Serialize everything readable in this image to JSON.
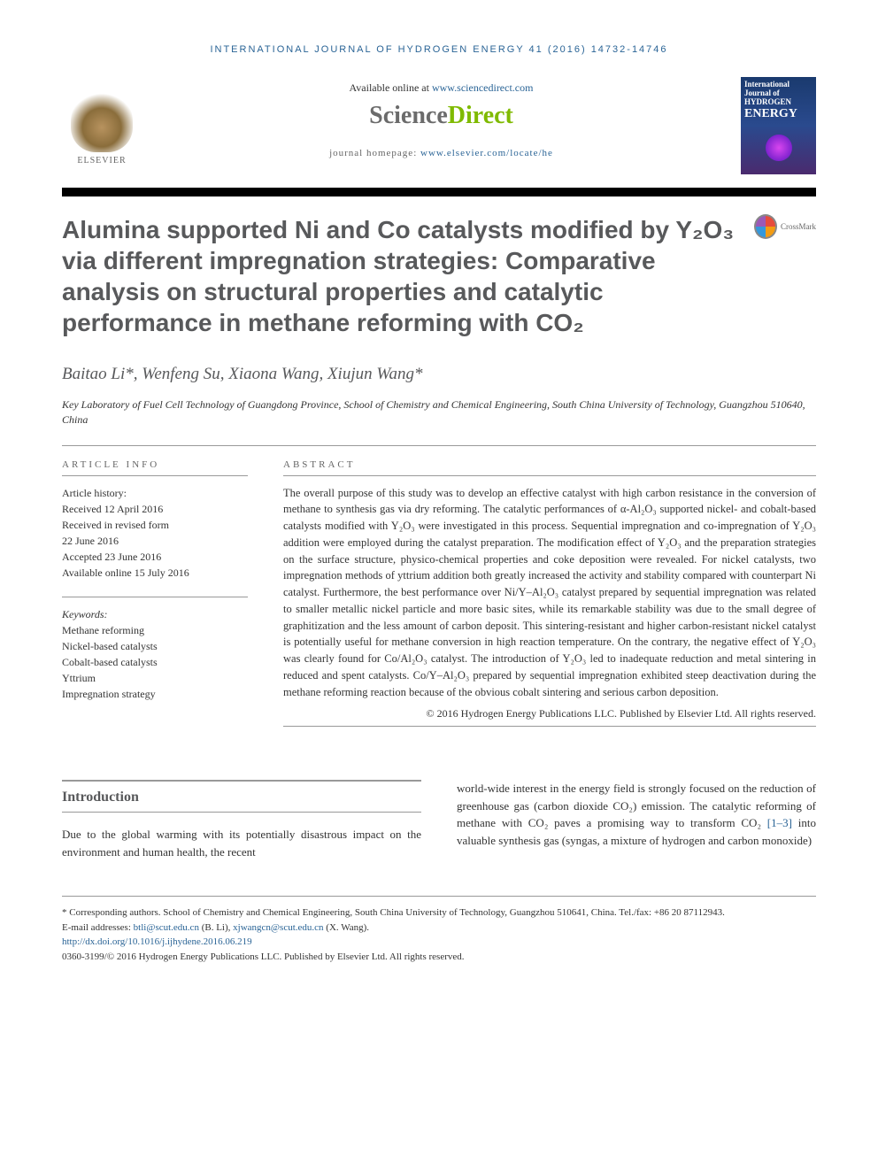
{
  "running_head": "INTERNATIONAL JOURNAL OF HYDROGEN ENERGY 41 (2016) 14732-14746",
  "header": {
    "available_text": "Available online at ",
    "available_link": "www.sciencedirect.com",
    "sd_science": "Science",
    "sd_direct": "Direct",
    "homepage_label": "journal homepage: ",
    "homepage_link": "www.elsevier.com/locate/he",
    "publisher_name": "ELSEVIER",
    "journal_cover_line1": "International Journal of",
    "journal_cover_line2": "HYDROGEN",
    "journal_cover_line3": "ENERGY"
  },
  "crossmark_label": "CrossMark",
  "title": "Alumina supported Ni and Co catalysts modified by Y₂O₃ via different impregnation strategies: Comparative analysis on structural properties and catalytic performance in methane reforming with CO₂",
  "authors_html": "Baitao Li*, Wenfeng Su, Xiaona Wang, Xiujun Wang*",
  "affiliation": "Key Laboratory of Fuel Cell Technology of Guangdong Province, School of Chemistry and Chemical Engineering, South China University of Technology, Guangzhou 510640, China",
  "article_info": {
    "heading": "ARTICLE INFO",
    "history_label": "Article history:",
    "history": [
      "Received 12 April 2016",
      "Received in revised form",
      "22 June 2016",
      "Accepted 23 June 2016",
      "Available online 15 July 2016"
    ],
    "keywords_label": "Keywords:",
    "keywords": [
      "Methane reforming",
      "Nickel-based catalysts",
      "Cobalt-based catalysts",
      "Yttrium",
      "Impregnation strategy"
    ]
  },
  "abstract": {
    "heading": "ABSTRACT",
    "text": "The overall purpose of this study was to develop an effective catalyst with high carbon resistance in the conversion of methane to synthesis gas via dry reforming. The catalytic performances of α-Al₂O₃ supported nickel- and cobalt-based catalysts modified with Y₂O₃ were investigated in this process. Sequential impregnation and co-impregnation of Y₂O₃ addition were employed during the catalyst preparation. The modification effect of Y₂O₃ and the preparation strategies on the surface structure, physico-chemical properties and coke deposition were revealed. For nickel catalysts, two impregnation methods of yttrium addition both greatly increased the activity and stability compared with counterpart Ni catalyst. Furthermore, the best performance over Ni/Y–Al₂O₃ catalyst prepared by sequential impregnation was related to smaller metallic nickel particle and more basic sites, while its remarkable stability was due to the small degree of graphitization and the less amount of carbon deposit. This sintering-resistant and higher carbon-resistant nickel catalyst is potentially useful for methane conversion in high reaction temperature. On the contrary, the negative effect of Y₂O₃ was clearly found for Co/Al₂O₃ catalyst. The introduction of Y₂O₃ led to inadequate reduction and metal sintering in reduced and spent catalysts. Co/Y–Al₂O₃ prepared by sequential impregnation exhibited steep deactivation during the methane reforming reaction because of the obvious cobalt sintering and serious carbon deposition.",
    "copyright": "© 2016 Hydrogen Energy Publications LLC. Published by Elsevier Ltd. All rights reserved."
  },
  "body": {
    "section_heading": "Introduction",
    "col1": "Due to the global warming with its potentially disastrous impact on the environment and human health, the recent",
    "col2_pre": "world-wide interest in the energy field is strongly focused on the reduction of greenhouse gas (carbon dioxide CO₂) emission. The catalytic reforming of methane with CO₂ paves a promising way to transform CO₂ ",
    "ref_link": "[1–3]",
    "col2_post": " into valuable synthesis gas (syngas, a mixture of hydrogen and carbon monoxide)"
  },
  "footnotes": {
    "corr": "* Corresponding authors. School of Chemistry and Chemical Engineering, South China University of Technology, Guangzhou 510641, China. Tel./fax: +86 20 87112943.",
    "email_label": "E-mail addresses: ",
    "email1": "btli@scut.edu.cn",
    "email1_name": " (B. Li), ",
    "email2": "xjwangcn@scut.edu.cn",
    "email2_name": " (X. Wang).",
    "doi": "http://dx.doi.org/10.1016/j.ijhydene.2016.06.219",
    "issn_copyright": "0360-3199/© 2016 Hydrogen Energy Publications LLC. Published by Elsevier Ltd. All rights reserved."
  },
  "colors": {
    "link": "#2a6496",
    "heading_gray": "#58595b",
    "sd_green": "#7fba00",
    "sd_gray": "#6b6b6b"
  },
  "typography": {
    "title_fontsize": 28,
    "authors_fontsize": 19,
    "body_fontsize": 13,
    "abstract_fontsize": 12.5,
    "footnote_fontsize": 11
  }
}
